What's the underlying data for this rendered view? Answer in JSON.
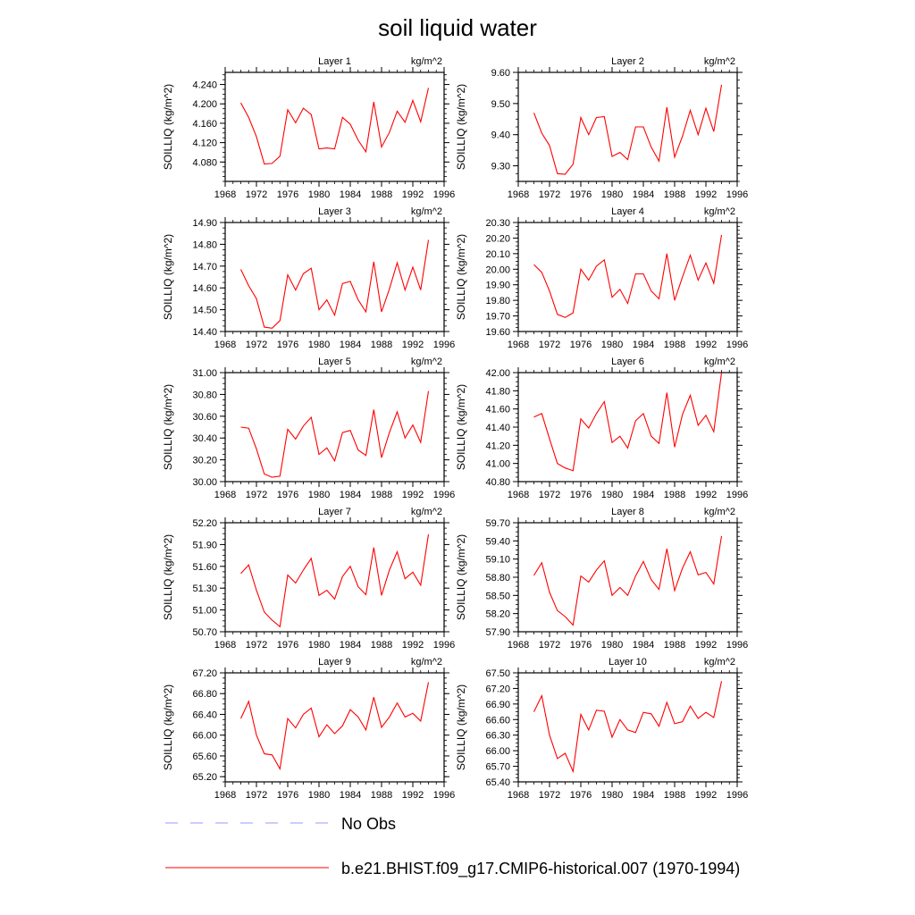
{
  "title": "soil liquid water",
  "units_label": "kg/m^2",
  "ylabel": "SOILLIQ  (kg/m^2)",
  "x_ticks": [
    1968,
    1972,
    1976,
    1980,
    1984,
    1988,
    1992,
    1996
  ],
  "xlim": [
    1968,
    1996
  ],
  "colors": {
    "model": "#ff0000",
    "obs": "#9999ff"
  },
  "legend": [
    {
      "label": "No Obs",
      "style": "dashed"
    },
    {
      "label": "b.e21.BHIST.f09_g17.CMIP6-historical.007 (1970-1994)",
      "style": "solid"
    }
  ],
  "chart_data": [
    {
      "type": "line",
      "title": "Layer 1",
      "ylim": [
        4.04,
        4.265
      ],
      "yticks": [
        "4.080",
        "4.120",
        "4.160",
        "4.200",
        "4.240"
      ],
      "ytick_values": [
        4.08,
        4.12,
        4.16,
        4.2,
        4.24
      ],
      "x": [
        1970,
        1971,
        1972,
        1973,
        1974,
        1975,
        1976,
        1977,
        1978,
        1979,
        1980,
        1981,
        1982,
        1983,
        1984,
        1985,
        1986,
        1987,
        1988,
        1989,
        1990,
        1991,
        1992,
        1993,
        1994
      ],
      "values": [
        4.202,
        4.172,
        4.132,
        4.076,
        4.077,
        4.092,
        4.188,
        4.161,
        4.191,
        4.178,
        4.107,
        4.109,
        4.107,
        4.172,
        4.158,
        4.125,
        4.101,
        4.204,
        4.111,
        4.141,
        4.185,
        4.162,
        4.207,
        4.163,
        4.233
      ]
    },
    {
      "type": "line",
      "title": "Layer 2",
      "ylim": [
        9.25,
        9.6
      ],
      "yticks": [
        "9.30",
        "9.40",
        "9.50",
        "9.60"
      ],
      "ytick_values": [
        9.3,
        9.4,
        9.5,
        9.6
      ],
      "x": [
        1970,
        1971,
        1972,
        1973,
        1974,
        1975,
        1976,
        1977,
        1978,
        1979,
        1980,
        1981,
        1982,
        1983,
        1984,
        1985,
        1986,
        1987,
        1988,
        1989,
        1990,
        1991,
        1992,
        1993,
        1994
      ],
      "values": [
        9.47,
        9.405,
        9.365,
        9.275,
        9.273,
        9.305,
        9.455,
        9.4,
        9.455,
        9.458,
        9.33,
        9.343,
        9.32,
        9.425,
        9.425,
        9.36,
        9.315,
        9.488,
        9.328,
        9.395,
        9.478,
        9.4,
        9.485,
        9.41,
        9.56
      ]
    },
    {
      "type": "line",
      "title": "Layer 3",
      "ylim": [
        14.4,
        14.9
      ],
      "yticks": [
        "14.40",
        "14.50",
        "14.60",
        "14.70",
        "14.80",
        "14.90"
      ],
      "ytick_values": [
        14.4,
        14.5,
        14.6,
        14.7,
        14.8,
        14.9
      ],
      "x": [
        1970,
        1971,
        1972,
        1973,
        1974,
        1975,
        1976,
        1977,
        1978,
        1979,
        1980,
        1981,
        1982,
        1983,
        1984,
        1985,
        1986,
        1987,
        1988,
        1989,
        1990,
        1991,
        1992,
        1993,
        1994
      ],
      "values": [
        14.685,
        14.61,
        14.55,
        14.42,
        14.415,
        14.45,
        14.66,
        14.59,
        14.665,
        14.69,
        14.5,
        14.545,
        14.475,
        14.62,
        14.63,
        14.545,
        14.49,
        14.72,
        14.49,
        14.595,
        14.715,
        14.59,
        14.695,
        14.59,
        14.82
      ]
    },
    {
      "type": "line",
      "title": "Layer 4",
      "ylim": [
        19.6,
        20.3
      ],
      "yticks": [
        "19.60",
        "19.70",
        "19.80",
        "19.90",
        "20.00",
        "20.10",
        "20.20",
        "20.30"
      ],
      "ytick_values": [
        19.6,
        19.7,
        19.8,
        19.9,
        20.0,
        20.1,
        20.2,
        20.3
      ],
      "x": [
        1970,
        1971,
        1972,
        1973,
        1974,
        1975,
        1976,
        1977,
        1978,
        1979,
        1980,
        1981,
        1982,
        1983,
        1984,
        1985,
        1986,
        1987,
        1988,
        1989,
        1990,
        1991,
        1992,
        1993,
        1994
      ],
      "values": [
        20.03,
        19.98,
        19.86,
        19.71,
        19.69,
        19.72,
        20.0,
        19.93,
        20.02,
        20.06,
        19.82,
        19.87,
        19.78,
        19.97,
        19.97,
        19.86,
        19.81,
        20.1,
        19.8,
        19.95,
        20.09,
        19.93,
        20.04,
        19.91,
        20.22
      ]
    },
    {
      "type": "line",
      "title": "Layer 5",
      "ylim": [
        30.0,
        31.0
      ],
      "yticks": [
        "30.00",
        "30.20",
        "30.40",
        "30.60",
        "30.80",
        "31.00"
      ],
      "ytick_values": [
        30.0,
        30.2,
        30.4,
        30.6,
        30.8,
        31.0
      ],
      "x": [
        1970,
        1971,
        1972,
        1973,
        1974,
        1975,
        1976,
        1977,
        1978,
        1979,
        1980,
        1981,
        1982,
        1983,
        1984,
        1985,
        1986,
        1987,
        1988,
        1989,
        1990,
        1991,
        1992,
        1993,
        1994
      ],
      "values": [
        30.5,
        30.49,
        30.3,
        30.07,
        30.04,
        30.05,
        30.48,
        30.39,
        30.51,
        30.59,
        30.25,
        30.31,
        30.19,
        30.45,
        30.47,
        30.29,
        30.24,
        30.66,
        30.22,
        30.45,
        30.64,
        30.4,
        30.52,
        30.36,
        30.83
      ]
    },
    {
      "type": "line",
      "title": "Layer 6",
      "ylim": [
        40.8,
        42.0
      ],
      "yticks": [
        "40.80",
        "41.00",
        "41.20",
        "41.40",
        "41.60",
        "41.80",
        "42.00"
      ],
      "ytick_values": [
        40.8,
        41.0,
        41.2,
        41.4,
        41.6,
        41.8,
        42.0
      ],
      "x": [
        1970,
        1971,
        1972,
        1973,
        1974,
        1975,
        1976,
        1977,
        1978,
        1979,
        1980,
        1981,
        1982,
        1983,
        1984,
        1985,
        1986,
        1987,
        1988,
        1989,
        1990,
        1991,
        1992,
        1993,
        1994
      ],
      "values": [
        41.51,
        41.55,
        41.27,
        41.0,
        40.95,
        40.92,
        41.49,
        41.39,
        41.55,
        41.68,
        41.23,
        41.3,
        41.17,
        41.47,
        41.55,
        41.3,
        41.22,
        41.78,
        41.18,
        41.54,
        41.75,
        41.42,
        41.53,
        41.35,
        42.0
      ]
    },
    {
      "type": "line",
      "title": "Layer 7",
      "ylim": [
        50.7,
        52.2
      ],
      "yticks": [
        "50.70",
        "51.00",
        "51.30",
        "51.60",
        "51.90",
        "52.20"
      ],
      "ytick_values": [
        50.7,
        51.0,
        51.3,
        51.6,
        51.9,
        52.2
      ],
      "x": [
        1970,
        1971,
        1972,
        1973,
        1974,
        1975,
        1976,
        1977,
        1978,
        1979,
        1980,
        1981,
        1982,
        1983,
        1984,
        1985,
        1986,
        1987,
        1988,
        1989,
        1990,
        1991,
        1992,
        1993,
        1994
      ],
      "values": [
        51.5,
        51.62,
        51.27,
        50.97,
        50.86,
        50.77,
        51.48,
        51.37,
        51.55,
        51.71,
        51.2,
        51.27,
        51.15,
        51.46,
        51.6,
        51.32,
        51.21,
        51.86,
        51.2,
        51.55,
        51.8,
        51.43,
        51.52,
        51.34,
        52.04
      ]
    },
    {
      "type": "line",
      "title": "Layer 8",
      "ylim": [
        57.9,
        59.7
      ],
      "yticks": [
        "57.90",
        "58.20",
        "58.50",
        "58.80",
        "59.10",
        "59.40",
        "59.70"
      ],
      "ytick_values": [
        57.9,
        58.2,
        58.5,
        58.8,
        59.1,
        59.4,
        59.7
      ],
      "x": [
        1970,
        1971,
        1972,
        1973,
        1974,
        1975,
        1976,
        1977,
        1978,
        1979,
        1980,
        1981,
        1982,
        1983,
        1984,
        1985,
        1986,
        1987,
        1988,
        1989,
        1990,
        1991,
        1992,
        1993,
        1994
      ],
      "values": [
        58.83,
        59.04,
        58.55,
        58.25,
        58.15,
        58.01,
        58.82,
        58.72,
        58.92,
        59.07,
        58.5,
        58.63,
        58.5,
        58.82,
        59.06,
        58.76,
        58.6,
        59.27,
        58.58,
        58.95,
        59.22,
        58.84,
        58.88,
        58.69,
        59.48
      ]
    },
    {
      "type": "line",
      "title": "Layer 9",
      "ylim": [
        65.1,
        67.2
      ],
      "yticks": [
        "65.20",
        "65.60",
        "66.00",
        "66.40",
        "66.80",
        "67.20"
      ],
      "ytick_values": [
        65.2,
        65.6,
        66.0,
        66.4,
        66.8,
        67.2
      ],
      "x": [
        1970,
        1971,
        1972,
        1973,
        1974,
        1975,
        1976,
        1977,
        1978,
        1979,
        1980,
        1981,
        1982,
        1983,
        1984,
        1985,
        1986,
        1987,
        1988,
        1989,
        1990,
        1991,
        1992,
        1993,
        1994
      ],
      "values": [
        66.32,
        66.65,
        66.0,
        65.64,
        65.62,
        65.35,
        66.32,
        66.14,
        66.4,
        66.52,
        65.97,
        66.2,
        66.03,
        66.18,
        66.49,
        66.35,
        66.1,
        66.73,
        66.15,
        66.35,
        66.62,
        66.35,
        66.42,
        66.27,
        67.02
      ]
    },
    {
      "type": "line",
      "title": "Layer 10",
      "ylim": [
        65.4,
        67.5
      ],
      "yticks": [
        "65.40",
        "65.70",
        "66.00",
        "66.30",
        "66.60",
        "66.90",
        "67.20",
        "67.50"
      ],
      "ytick_values": [
        65.4,
        65.7,
        66.0,
        66.3,
        66.6,
        66.9,
        67.2,
        67.5
      ],
      "x": [
        1970,
        1971,
        1972,
        1973,
        1974,
        1975,
        1976,
        1977,
        1978,
        1979,
        1980,
        1981,
        1982,
        1983,
        1984,
        1985,
        1986,
        1987,
        1988,
        1989,
        1990,
        1991,
        1992,
        1993,
        1994
      ],
      "values": [
        66.75,
        67.06,
        66.3,
        65.85,
        65.95,
        65.6,
        66.7,
        66.4,
        66.78,
        66.76,
        66.26,
        66.6,
        66.4,
        66.35,
        66.74,
        66.71,
        66.47,
        66.93,
        66.52,
        66.56,
        66.86,
        66.62,
        66.74,
        66.64,
        67.34
      ]
    }
  ]
}
